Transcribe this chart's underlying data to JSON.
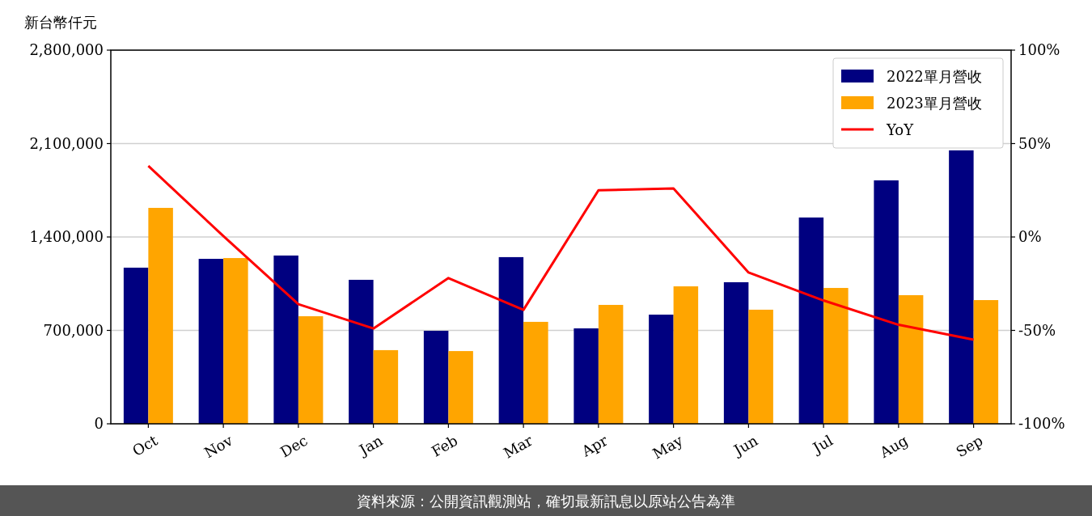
{
  "chart_data": {
    "type": "bar",
    "ylabel": "新台幣仟元",
    "categories": [
      "Oct",
      "Nov",
      "Dec",
      "Jan",
      "Feb",
      "Mar",
      "Apr",
      "May",
      "Jun",
      "Jul",
      "Aug",
      "Sep"
    ],
    "series": [
      {
        "name": "2022單月營收",
        "color": "#000080",
        "values": [
          1170000,
          1236000,
          1261000,
          1079000,
          697000,
          1249000,
          715000,
          818000,
          1061000,
          1546000,
          1824000,
          2049000
        ]
      },
      {
        "name": "2023單月營收",
        "color": "#ffa500",
        "values": [
          1618000,
          1242000,
          806000,
          552000,
          545000,
          764000,
          891000,
          1030000,
          855000,
          1018000,
          964000,
          927000
        ]
      },
      {
        "name": "YoY",
        "type": "line",
        "axis": "y2",
        "color": "#ff0000",
        "values": [
          38,
          0.5,
          -36,
          -49,
          -22,
          -39,
          25,
          26,
          -19,
          -34,
          -47,
          -55
        ]
      }
    ],
    "ylim": [
      0,
      2800000
    ],
    "yticks": [
      {
        "value": 0,
        "label": "0"
      },
      {
        "value": 700000,
        "label": "700,000"
      },
      {
        "value": 1400000,
        "label": "1,400,000"
      },
      {
        "value": 2100000,
        "label": "2,100,000"
      },
      {
        "value": 2800000,
        "label": "2,800,000"
      }
    ],
    "y2lim": [
      -100,
      100
    ],
    "y2ticks": [
      {
        "value": -100,
        "label": "-100%"
      },
      {
        "value": -50,
        "label": "-50%"
      },
      {
        "value": 0,
        "label": "0%"
      },
      {
        "value": 50,
        "label": "50%"
      },
      {
        "value": 100,
        "label": "100%"
      }
    ],
    "grid": "y",
    "legend": "top right",
    "annotations": [
      "資料來源：公開資訊觀測站，確切最新訊息以原站公告為準"
    ]
  }
}
